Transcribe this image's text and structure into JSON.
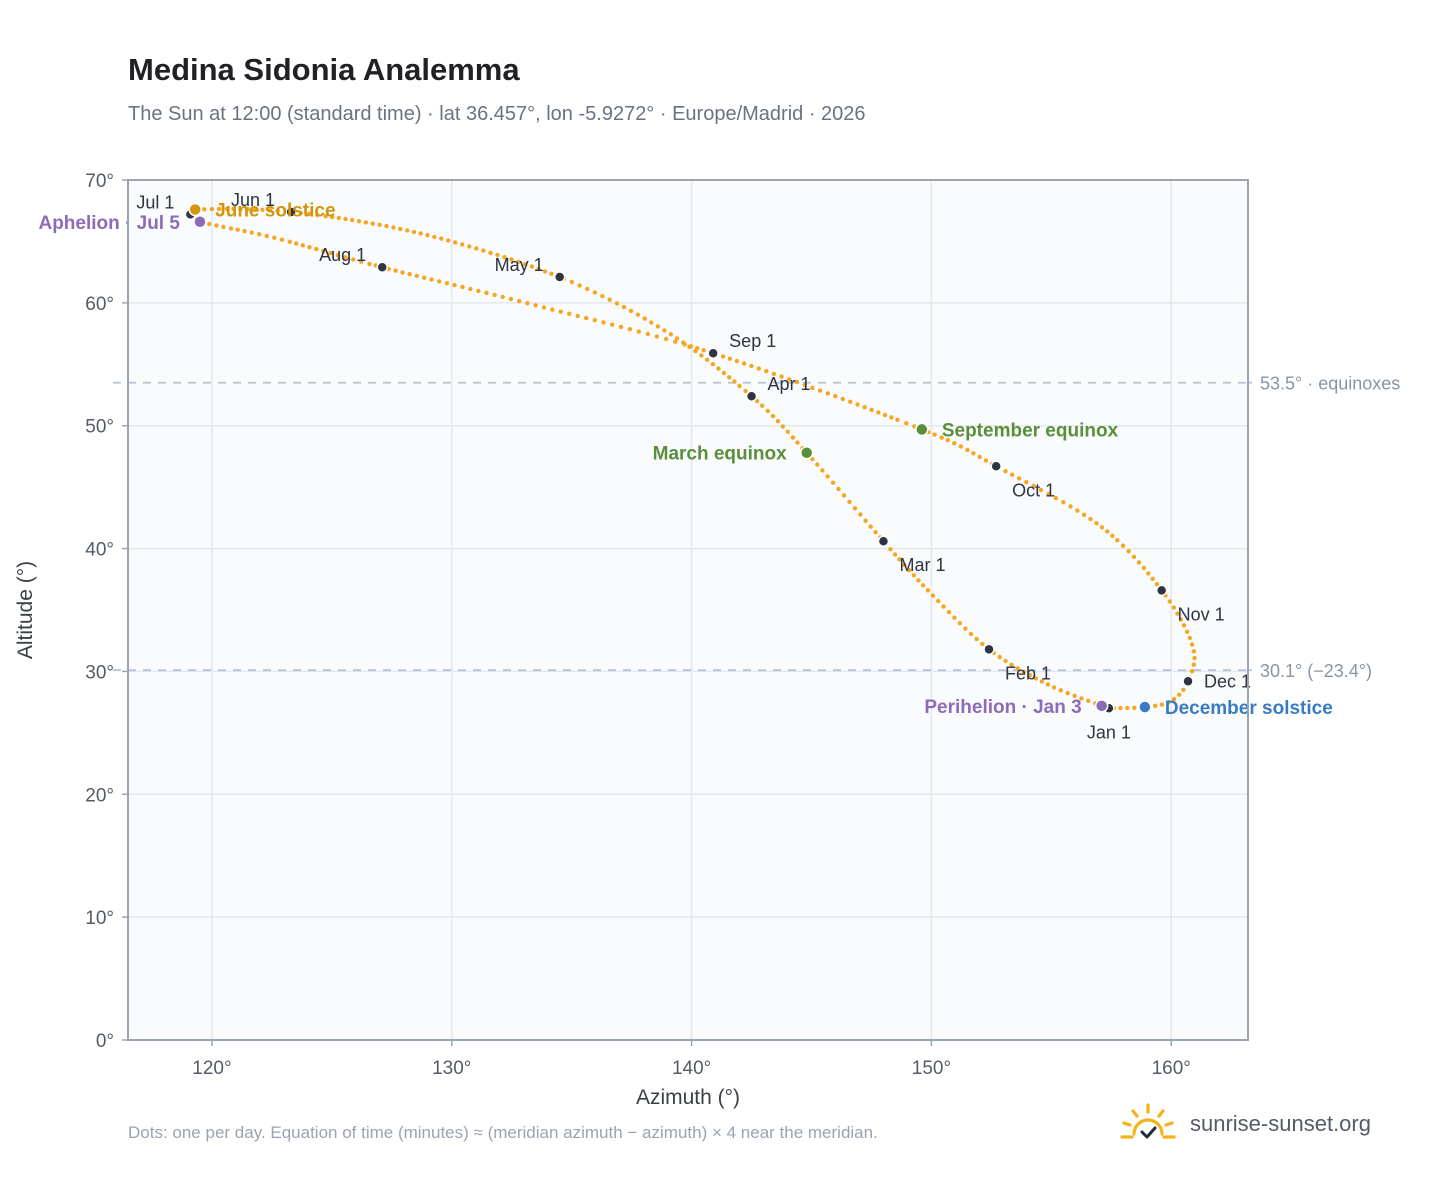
{
  "title": "Medina Sidonia Analemma",
  "subtitle": "The Sun at 12:00 (standard time) · lat 36.457°, lon -5.9272° · Europe/Madrid · 2026",
  "footnote": "Dots: one per day. Equation of time (minutes) ≈ (meridian azimuth − azimuth) × 4 near the meridian.",
  "brand": "sunrise-sunset.org",
  "colors": {
    "path": "#f5a623",
    "month_marker": "#2e3440",
    "aphelion": "#8e6bb8",
    "june_solstice": "#d4950a",
    "equinox": "#5a8f3a",
    "december_solstice": "#3a7cc4",
    "reference_line": "#b8c4d6",
    "plot_bg": "#f9fbfd",
    "grid": "#e3e8ef",
    "frame": "#9aa5b4"
  },
  "chart_data": {
    "type": "scatter",
    "xlabel": "Azimuth (°)",
    "ylabel": "Altitude (°)",
    "xlim": [
      116.5,
      163.2
    ],
    "ylim": [
      0,
      70
    ],
    "xticks": [
      120,
      130,
      140,
      150,
      160
    ],
    "yticks": [
      0,
      10,
      20,
      30,
      40,
      50,
      60,
      70
    ],
    "tick_format": "°",
    "grid": true,
    "reference_lines": [
      {
        "y": 53.5,
        "label": "53.5° · equinoxes"
      },
      {
        "y": 30.1,
        "label": "30.1° (−23.4°)"
      }
    ],
    "analemma_path": [
      {
        "date": "Jan 1",
        "az": 157.4,
        "alt": 27.0
      },
      {
        "date": "Jan 16",
        "az": 154.9,
        "alt": 28.9
      },
      {
        "date": "Feb 1",
        "az": 152.4,
        "alt": 31.8
      },
      {
        "date": "Feb 15",
        "az": 150.1,
        "alt": 36.1
      },
      {
        "date": "Mar 1",
        "az": 148.0,
        "alt": 40.6
      },
      {
        "date": "Mar 20",
        "az": 144.8,
        "alt": 47.8
      },
      {
        "date": "Apr 1",
        "az": 142.5,
        "alt": 52.4
      },
      {
        "date": "Apr 16",
        "az": 139.0,
        "alt": 57.6
      },
      {
        "date": "May 1",
        "az": 134.5,
        "alt": 62.1
      },
      {
        "date": "May 16",
        "az": 128.8,
        "alt": 65.6
      },
      {
        "date": "Jun 1",
        "az": 123.3,
        "alt": 67.4
      },
      {
        "date": "Jun 21",
        "az": 119.3,
        "alt": 67.6
      },
      {
        "date": "Jul 1",
        "az": 119.1,
        "alt": 67.2
      },
      {
        "date": "Jul 5",
        "az": 119.5,
        "alt": 66.6
      },
      {
        "date": "Jul 16",
        "az": 122.6,
        "alt": 65.3
      },
      {
        "date": "Aug 1",
        "az": 127.1,
        "alt": 62.9
      },
      {
        "date": "Aug 16",
        "az": 133.5,
        "alt": 59.8
      },
      {
        "date": "Sep 1",
        "az": 140.9,
        "alt": 55.9
      },
      {
        "date": "Sep 23",
        "az": 149.6,
        "alt": 49.7
      },
      {
        "date": "Oct 1",
        "az": 152.7,
        "alt": 46.7
      },
      {
        "date": "Oct 16",
        "az": 157.0,
        "alt": 41.9
      },
      {
        "date": "Nov 1",
        "az": 159.6,
        "alt": 36.6
      },
      {
        "date": "Nov 16",
        "az": 160.9,
        "alt": 32.0
      },
      {
        "date": "Dec 1",
        "az": 160.7,
        "alt": 29.2
      },
      {
        "date": "Dec 16",
        "az": 160.0,
        "alt": 27.6
      },
      {
        "date": "Dec 21",
        "az": 158.9,
        "alt": 27.1
      },
      {
        "date": "Jan 1",
        "az": 157.4,
        "alt": 27.0
      }
    ],
    "month_markers": [
      {
        "label": "Jan 1",
        "az": 157.4,
        "alt": 27.0,
        "anchor": "below"
      },
      {
        "label": "Feb 1",
        "az": 152.4,
        "alt": 31.8,
        "anchor": "below-right"
      },
      {
        "label": "Mar 1",
        "az": 148.0,
        "alt": 40.6,
        "anchor": "below-right"
      },
      {
        "label": "Apr 1",
        "az": 142.5,
        "alt": 52.4,
        "anchor": "above-right"
      },
      {
        "label": "May 1",
        "az": 134.5,
        "alt": 62.1,
        "anchor": "above-left"
      },
      {
        "label": "Jun 1",
        "az": 123.3,
        "alt": 67.4,
        "anchor": "above-left"
      },
      {
        "label": "Jul 1",
        "az": 119.1,
        "alt": 67.2,
        "anchor": "above-left"
      },
      {
        "label": "Aug 1",
        "az": 127.1,
        "alt": 62.9,
        "anchor": "above-left"
      },
      {
        "label": "Sep 1",
        "az": 140.9,
        "alt": 55.9,
        "anchor": "above-right"
      },
      {
        "label": "Oct 1",
        "az": 152.7,
        "alt": 46.7,
        "anchor": "below-right"
      },
      {
        "label": "Nov 1",
        "az": 159.6,
        "alt": 36.6,
        "anchor": "below-right"
      },
      {
        "label": "Dec 1",
        "az": 160.7,
        "alt": 29.2,
        "anchor": "right"
      }
    ],
    "events": [
      {
        "label": "Aphelion · Jul 5",
        "az": 119.5,
        "alt": 66.6,
        "color": "#8e6bb8",
        "side": "left"
      },
      {
        "label": "June solstice",
        "az": 119.3,
        "alt": 67.6,
        "color": "#d4950a",
        "side": "right"
      },
      {
        "label": "March equinox",
        "az": 144.8,
        "alt": 47.8,
        "color": "#5a8f3a",
        "side": "left"
      },
      {
        "label": "September equinox",
        "az": 149.6,
        "alt": 49.7,
        "color": "#5a8f3a",
        "side": "right"
      },
      {
        "label": "Perihelion · Jan 3",
        "az": 157.1,
        "alt": 27.2,
        "color": "#8e6bb8",
        "side": "left"
      },
      {
        "label": "December solstice",
        "az": 158.9,
        "alt": 27.1,
        "color": "#3a7cc4",
        "side": "right"
      }
    ]
  }
}
